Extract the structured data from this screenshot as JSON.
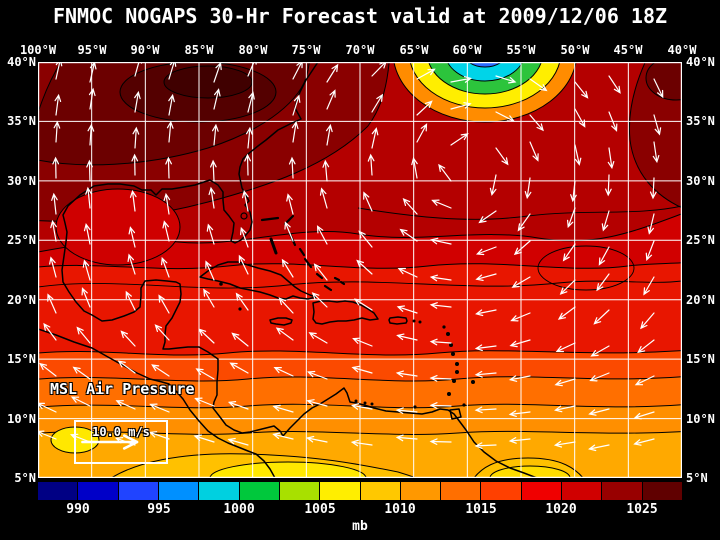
{
  "title": "FNMOC NOGAPS 30-Hr Forecast valid at 2009/12/06 18Z",
  "map": {
    "lon_labels": [
      "100°W",
      "95°W",
      "90°W",
      "85°W",
      "80°W",
      "75°W",
      "70°W",
      "65°W",
      "60°W",
      "55°W",
      "50°W",
      "45°W",
      "40°W"
    ],
    "lat_labels": [
      "40°N",
      "35°N",
      "30°N",
      "25°N",
      "20°N",
      "15°N",
      "10°N",
      "5°N"
    ],
    "field_label": "MSL Air Pressure",
    "wind_legend_label": "10.0 m/s",
    "colors": {
      "grid": "#ffffff",
      "coast": "#000000",
      "wind": "#ffffff",
      "background": "#000000"
    }
  },
  "colorbar": {
    "unit": "mb",
    "labels": [
      "990",
      "995",
      "1000",
      "1005",
      "1010",
      "1015",
      "1020",
      "1025"
    ],
    "colors": [
      "#000084",
      "#0000c8",
      "#2044ff",
      "#0090ff",
      "#00d0e0",
      "#00c83c",
      "#a8e000",
      "#ffee00",
      "#ffc800",
      "#ff9800",
      "#ff6f00",
      "#ff4000",
      "#f00000",
      "#d00000",
      "#980000",
      "#600000"
    ]
  }
}
